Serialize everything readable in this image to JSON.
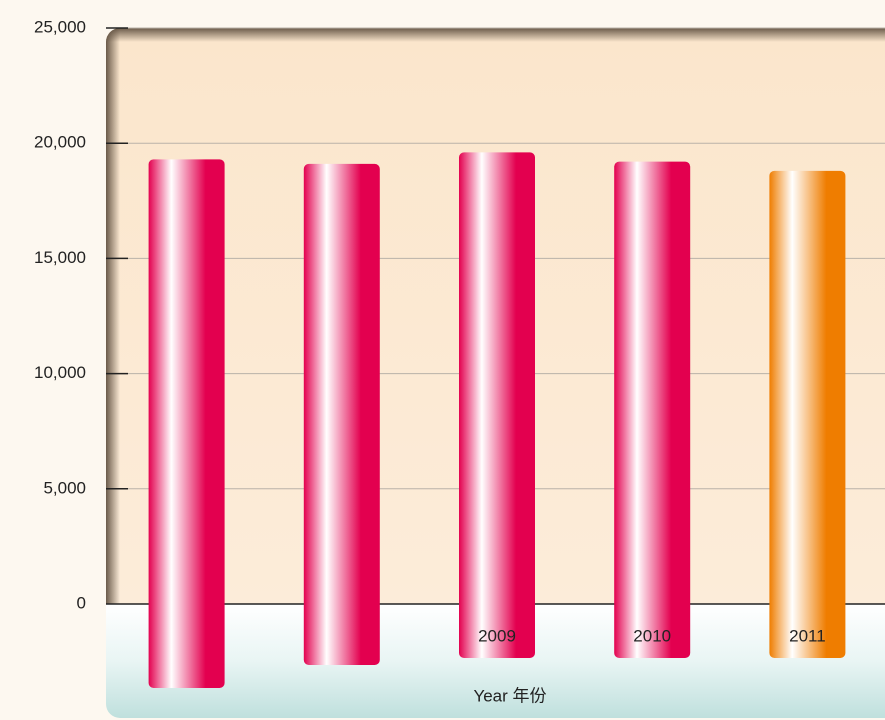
{
  "chart_data": {
    "type": "bar",
    "x_label": "Year 年份",
    "categories": [
      null,
      null,
      "2009",
      "2010",
      "2011"
    ],
    "values": [
      19300,
      19100,
      19600,
      19200,
      18800
    ],
    "colors": [
      "#e3004f",
      "#e3004f",
      "#e3004f",
      "#e3004f",
      "#ef7d00"
    ],
    "ylim": [
      0,
      25000
    ],
    "yticks": [
      {
        "value": 0,
        "label": "0"
      },
      {
        "value": 5000,
        "label": "5,000"
      },
      {
        "value": 10000,
        "label": "10,000"
      },
      {
        "value": 15000,
        "label": "15,000"
      },
      {
        "value": 20000,
        "label": "20,000"
      },
      {
        "value": 25000,
        "label": "25,000"
      }
    ],
    "grid": true
  }
}
